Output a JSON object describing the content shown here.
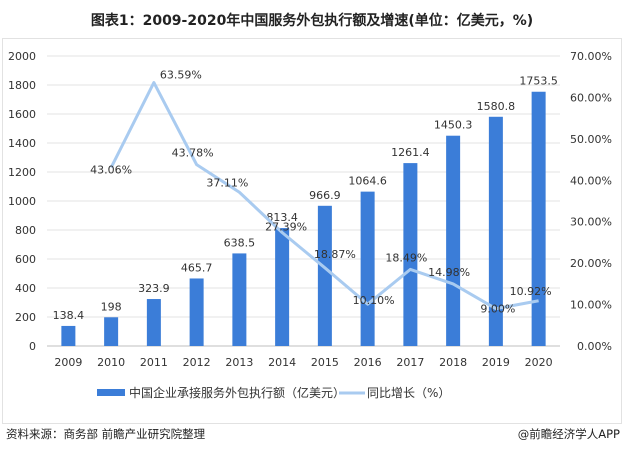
{
  "title": "图表1：2009-2020年中国服务外包执行额及增速(单位：亿美元，%)",
  "source": "资料来源：商务部 前瞻产业研究院整理",
  "credit": "@前瞻经济学人APP",
  "chart_data": {
    "type": "bar+line",
    "categories": [
      "2009",
      "2010",
      "2011",
      "2012",
      "2013",
      "2014",
      "2015",
      "2016",
      "2017",
      "2018",
      "2019",
      "2020"
    ],
    "series": [
      {
        "name": "中国企业承接服务外包执行额（亿美元）",
        "type": "bar",
        "axis": "left",
        "color": "#3b7dd8",
        "values": [
          138.4,
          198,
          323.9,
          465.7,
          638.5,
          813.4,
          966.9,
          1064.6,
          1261.4,
          1450.3,
          1580.8,
          1753.5
        ],
        "labels": [
          "138.4",
          "198",
          "323.9",
          "465.7",
          "638.5",
          "813.4",
          "966.9",
          "1064.6",
          "1261.4",
          "1450.3",
          "1580.8",
          "1753.5"
        ]
      },
      {
        "name": "同比增长（%）",
        "type": "line",
        "axis": "right",
        "color": "#a9cbf0",
        "values": [
          null,
          43.06,
          63.59,
          43.78,
          37.11,
          27.39,
          18.87,
          10.1,
          18.49,
          14.98,
          9.0,
          10.92
        ],
        "labels": [
          "",
          "43.06%",
          "63.59%",
          "43.78%",
          "37.11%",
          "27.39%",
          "18.87%",
          "10.10%",
          "18.49%",
          "14.98%",
          "9.00%",
          "10.92%"
        ]
      }
    ],
    "y_left": {
      "range": [
        0,
        2000
      ],
      "ticks": [
        "0",
        "200",
        "400",
        "600",
        "800",
        "1000",
        "1200",
        "1400",
        "1600",
        "1800",
        "2000"
      ]
    },
    "y_right": {
      "range": [
        0,
        70
      ],
      "ticks": [
        "0.00%",
        "10.00%",
        "20.00%",
        "30.00%",
        "40.00%",
        "50.00%",
        "60.00%",
        "70.00%"
      ]
    },
    "grid": true,
    "legend": "bottom"
  }
}
